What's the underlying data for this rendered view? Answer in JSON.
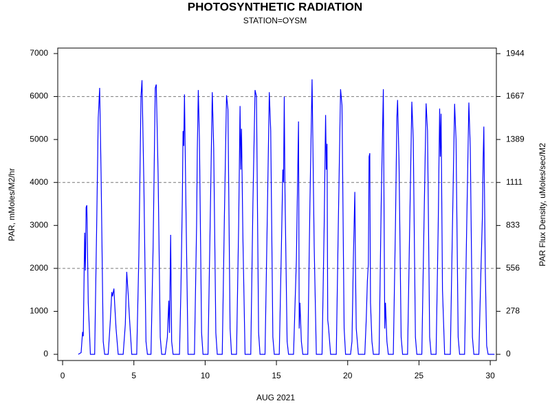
{
  "chart_data": {
    "type": "line",
    "title": "PHOTOSYNTHETIC RADIATION",
    "subtitle": "STATION=OYSM",
    "x_label": "AUG 2021",
    "y_label": "PAR, mMoles/M2/hr",
    "y2_label": "PAR Flux Density, uMoles/sec/M2",
    "xlim": [
      -0.34,
      30.43
    ],
    "xticks": [
      0,
      5,
      10,
      15,
      20,
      25,
      30
    ],
    "ylim": [
      -144,
      7128
    ],
    "yticks": [
      0,
      1000,
      2000,
      3000,
      4000,
      5000,
      6000,
      7000
    ],
    "y2lim": [
      -40,
      1980
    ],
    "y2ticks": [
      0,
      278,
      556,
      833,
      1111,
      1389,
      1667,
      1944
    ],
    "grid_lines": [
      2000,
      4000,
      6000
    ],
    "grid_style": "dashed",
    "series": [
      {
        "color": "#0000ff",
        "x": [
          1.1,
          1.3,
          1.4,
          1.45,
          1.55,
          1.6,
          1.65,
          1.7,
          1.8,
          1.95,
          2.25,
          2.4,
          2.5,
          2.6,
          2.7,
          2.85,
          2.95,
          3.2,
          3.35,
          3.45,
          3.5,
          3.6,
          3.65,
          3.75,
          3.9,
          4.25,
          4.4,
          4.5,
          4.6,
          4.7,
          4.85,
          5.2,
          5.35,
          5.5,
          5.57,
          5.7,
          5.85,
          5.95,
          6.2,
          6.35,
          6.5,
          6.57,
          6.7,
          6.85,
          6.95,
          7.2,
          7.35,
          7.45,
          7.5,
          7.58,
          7.65,
          7.75,
          8.2,
          8.3,
          8.4,
          8.45,
          8.5,
          8.55,
          8.65,
          8.8,
          9.25,
          9.4,
          9.45,
          9.52,
          9.6,
          9.75,
          9.85,
          10.2,
          10.35,
          10.5,
          10.6,
          10.75,
          10.85,
          11.2,
          11.35,
          11.5,
          11.6,
          11.75,
          11.85,
          12.2,
          12.35,
          12.45,
          12.5,
          12.55,
          12.65,
          12.8,
          13.2,
          13.35,
          13.5,
          13.6,
          13.75,
          13.85,
          14.2,
          14.35,
          14.5,
          14.6,
          14.75,
          14.85,
          15.2,
          15.35,
          15.45,
          15.5,
          15.55,
          15.6,
          15.75,
          15.85,
          16.2,
          16.4,
          16.55,
          16.6,
          16.65,
          16.75,
          16.85,
          17.2,
          17.35,
          17.5,
          17.55,
          17.65,
          17.8,
          18.2,
          18.35,
          18.45,
          18.5,
          18.55,
          18.6,
          18.65,
          18.8,
          19.2,
          19.35,
          19.5,
          19.6,
          19.75,
          19.85,
          20.2,
          20.3,
          20.4,
          20.5,
          20.55,
          20.6,
          20.75,
          21.2,
          21.3,
          21.38,
          21.45,
          21.5,
          21.55,
          21.6,
          21.7,
          21.8,
          22.2,
          22.35,
          22.5,
          22.6,
          22.65,
          22.75,
          22.85,
          23.2,
          23.35,
          23.45,
          23.5,
          23.6,
          23.75,
          23.85,
          24.2,
          24.35,
          24.5,
          24.6,
          24.75,
          24.85,
          25.2,
          25.35,
          25.5,
          25.6,
          25.75,
          25.85,
          26.2,
          26.35,
          26.45,
          26.5,
          26.55,
          26.65,
          26.8,
          27.2,
          27.35,
          27.5,
          27.6,
          27.75,
          27.85,
          28.2,
          28.35,
          28.5,
          28.6,
          28.75,
          28.85,
          29.2,
          29.35,
          29.45,
          29.5,
          29.55,
          29.65,
          29.75,
          29.85,
          30.3
        ],
        "values": [
          0,
          40,
          520,
          420,
          2830,
          1950,
          3420,
          3470,
          1200,
          0,
          0,
          3200,
          5500,
          6200,
          4200,
          300,
          0,
          0,
          800,
          1450,
          1350,
          1530,
          1200,
          600,
          0,
          0,
          700,
          1920,
          1400,
          800,
          0,
          0,
          2300,
          6000,
          6380,
          4000,
          300,
          0,
          0,
          2500,
          6200,
          6280,
          4200,
          400,
          0,
          0,
          400,
          1250,
          500,
          2780,
          300,
          0,
          0,
          1500,
          3600,
          5200,
          4850,
          6050,
          3500,
          0,
          0,
          3000,
          4750,
          6150,
          5000,
          500,
          0,
          0,
          3000,
          6100,
          4800,
          500,
          0,
          0,
          3200,
          6030,
          5700,
          600,
          0,
          0,
          3000,
          5780,
          4300,
          5250,
          2700,
          0,
          0,
          3500,
          6150,
          6000,
          500,
          0,
          0,
          3000,
          6100,
          5200,
          400,
          0,
          0,
          2500,
          4300,
          4000,
          6000,
          3800,
          300,
          0,
          0,
          2200,
          5420,
          600,
          1200,
          300,
          0,
          0,
          3500,
          6400,
          5100,
          2500,
          0,
          0,
          3000,
          5570,
          4300,
          4900,
          800,
          650,
          0,
          0,
          3200,
          6170,
          5800,
          600,
          0,
          0,
          300,
          2250,
          3780,
          1900,
          600,
          0,
          0,
          800,
          1700,
          2100,
          4600,
          4680,
          1200,
          300,
          0,
          0,
          3500,
          6170,
          600,
          1200,
          300,
          0,
          0,
          3000,
          5500,
          5920,
          4500,
          400,
          0,
          0,
          3000,
          5880,
          5000,
          400,
          0,
          0,
          3000,
          5840,
          5200,
          400,
          0,
          0,
          3000,
          5720,
          4600,
          5600,
          1500,
          0,
          0,
          3000,
          5830,
          5000,
          400,
          0,
          0,
          3000,
          5860,
          4800,
          400,
          0,
          0,
          2000,
          3200,
          4500,
          5300,
          2000,
          200,
          0,
          0
        ]
      }
    ]
  }
}
